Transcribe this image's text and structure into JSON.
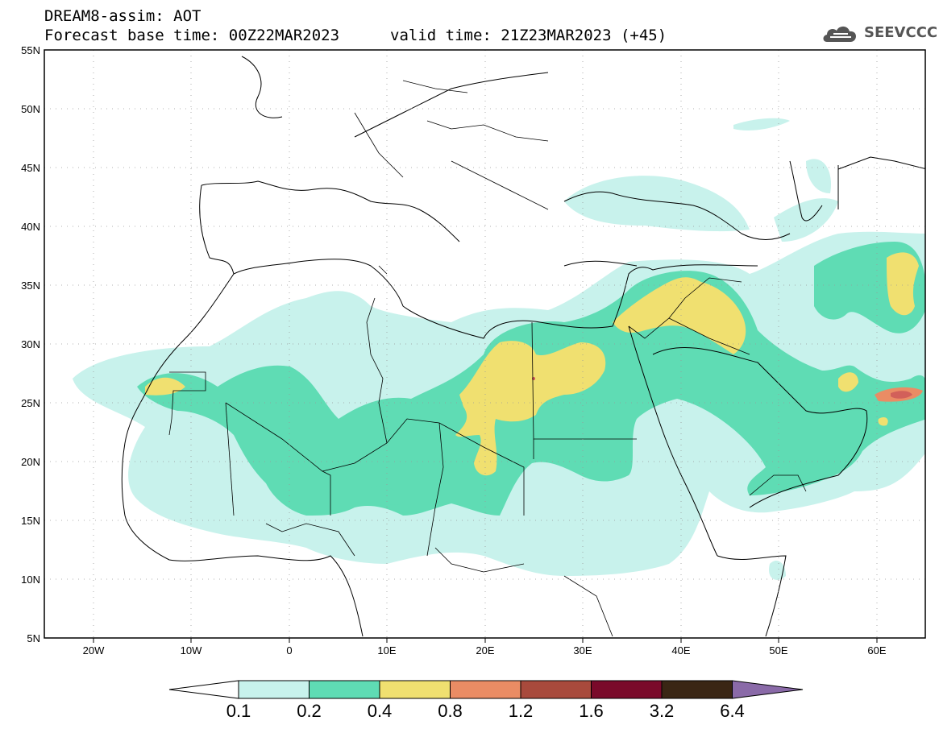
{
  "header": {
    "line1": "DREAM8-assim: AOT",
    "line2": "Forecast base time: 00Z22MAR2023",
    "valid": "valid time: 21Z23MAR2023 (+45)",
    "logo_text": "SEEVCCC"
  },
  "map": {
    "lon_min": -25,
    "lon_max": 65,
    "lat_min": 5,
    "lat_max": 55,
    "lat_ticks": [
      "55N",
      "50N",
      "45N",
      "40N",
      "35N",
      "30N",
      "25N",
      "20N",
      "15N",
      "10N",
      "5N"
    ],
    "lon_ticks": [
      "20W",
      "10W",
      "0",
      "10E",
      "20E",
      "30E",
      "40E",
      "50E",
      "60E"
    ],
    "grid": true
  },
  "colorbar": {
    "levels": [
      "0.1",
      "0.2",
      "0.4",
      "0.8",
      "1.2",
      "1.6",
      "3.2",
      "6.4"
    ],
    "colors": [
      "#c8f2ec",
      "#5fdcb4",
      "#f0e070",
      "#ea8c64",
      "#a84a3c",
      "#7a0a2a",
      "#3a2614",
      "#8a6aa8"
    ]
  }
}
